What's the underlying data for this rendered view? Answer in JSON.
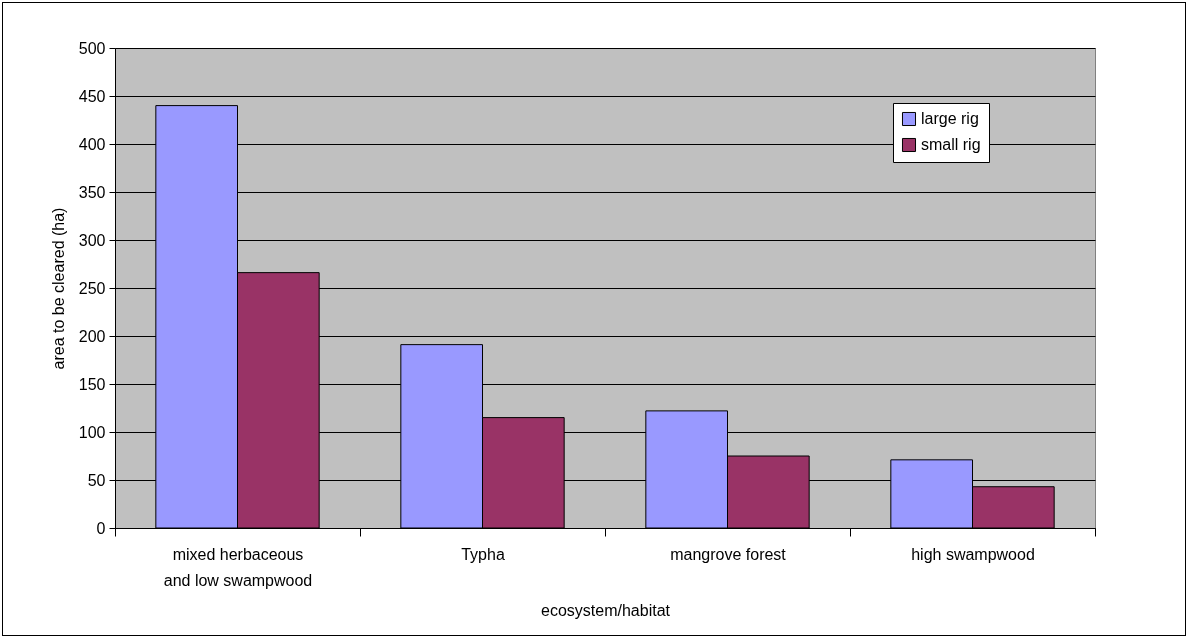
{
  "chart_data": {
    "type": "bar",
    "xlabel": "ecosystem/habitat",
    "ylabel": "area to be cleared (ha)",
    "categories": [
      "mixed herbaceous and low swampwood",
      "Typha",
      "mangrove forest",
      "high swampwood"
    ],
    "series": [
      {
        "name": "large rig",
        "color": "#9999ff",
        "values": [
          440,
          191,
          122,
          71
        ]
      },
      {
        "name": "small rig",
        "color": "#993366",
        "values": [
          266,
          115,
          75,
          43
        ]
      }
    ],
    "ylim": [
      0,
      500
    ],
    "yticks": [
      0,
      50,
      100,
      150,
      200,
      250,
      300,
      350,
      400,
      450,
      500
    ],
    "grid": "y",
    "legend": "top right"
  }
}
